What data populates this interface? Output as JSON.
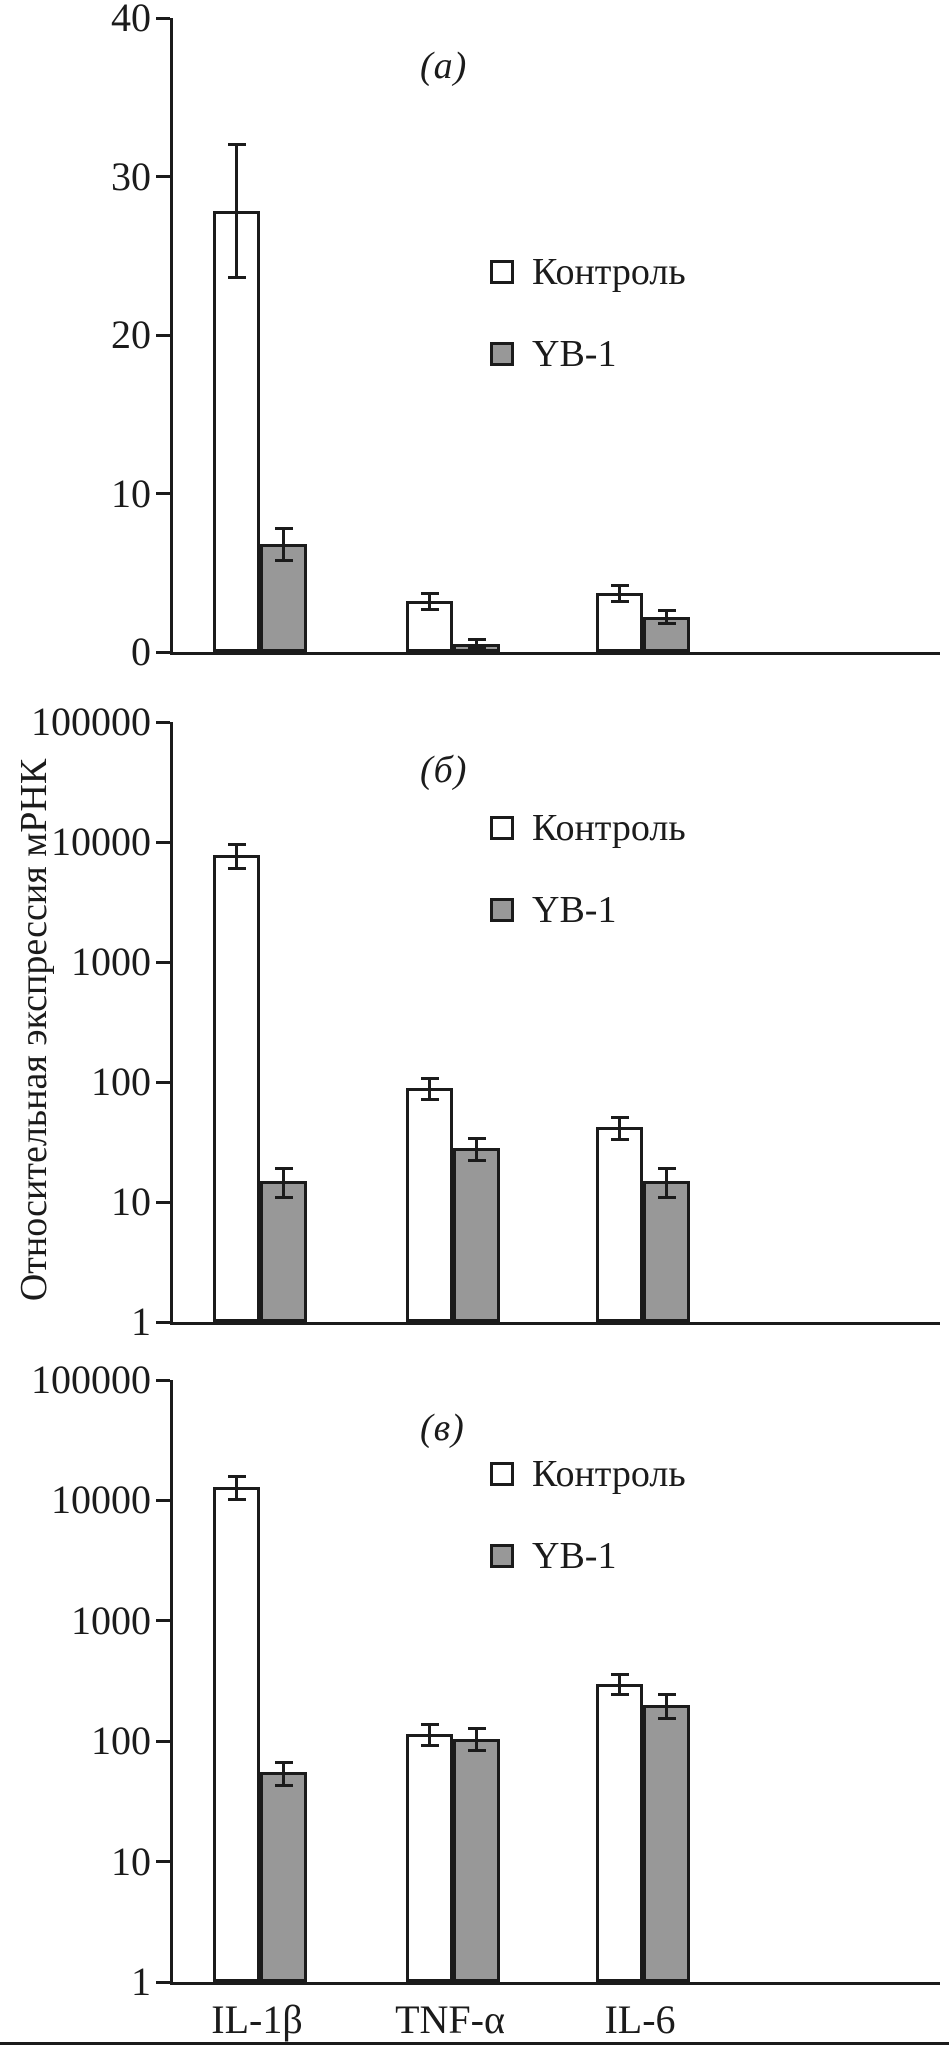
{
  "figure": {
    "y_axis_title": "Относительная экспрессия мРНК",
    "colors": {
      "ink": "#1b1b1b",
      "control_fill": "#ffffff",
      "yb1_fill": "#989898",
      "background": "#ffffff"
    }
  },
  "chart_data": [
    {
      "type": "bar",
      "panel_label": "(а)",
      "scale": "linear",
      "ylim": [
        0,
        40
      ],
      "yticks": [
        0,
        10,
        20,
        30,
        40
      ],
      "grid": false,
      "legend_position": "upper-right-inside",
      "categories": [
        "IL-1β",
        "TNF-α",
        "IL-6"
      ],
      "series": [
        {
          "name": "Контроль",
          "values": [
            27.8,
            3.2,
            3.7
          ],
          "errors": [
            4.2,
            0.5,
            0.5
          ]
        },
        {
          "name": "YB-1",
          "values": [
            6.8,
            0.5,
            2.2
          ],
          "errors": [
            1.0,
            0.3,
            0.4
          ]
        }
      ]
    },
    {
      "type": "bar",
      "panel_label": "(б)",
      "scale": "log",
      "ylim": [
        1,
        100000
      ],
      "yticks": [
        1,
        10,
        100,
        1000,
        10000,
        100000
      ],
      "grid": false,
      "legend_position": "upper-right-inside",
      "categories": [
        "IL-1β",
        "TNF-α",
        "IL-6"
      ],
      "series": [
        {
          "name": "Контроль",
          "values": [
            7800,
            90,
            42
          ],
          "errors": [
            1800,
            18,
            9
          ]
        },
        {
          "name": "YB-1",
          "values": [
            15,
            28,
            15
          ],
          "errors": [
            4,
            6,
            4
          ]
        }
      ]
    },
    {
      "type": "bar",
      "panel_label": "(в)",
      "scale": "log",
      "ylim": [
        1,
        100000
      ],
      "yticks": [
        1,
        10,
        100,
        1000,
        10000,
        100000
      ],
      "grid": false,
      "legend_position": "upper-right-inside",
      "categories": [
        "IL-1β",
        "TNF-α",
        "IL-6"
      ],
      "series": [
        {
          "name": "Контроль",
          "values": [
            13000,
            115,
            300
          ],
          "errors": [
            2800,
            22,
            55
          ]
        },
        {
          "name": "YB-1",
          "values": [
            55,
            105,
            200
          ],
          "errors": [
            12,
            22,
            45
          ]
        }
      ]
    }
  ]
}
